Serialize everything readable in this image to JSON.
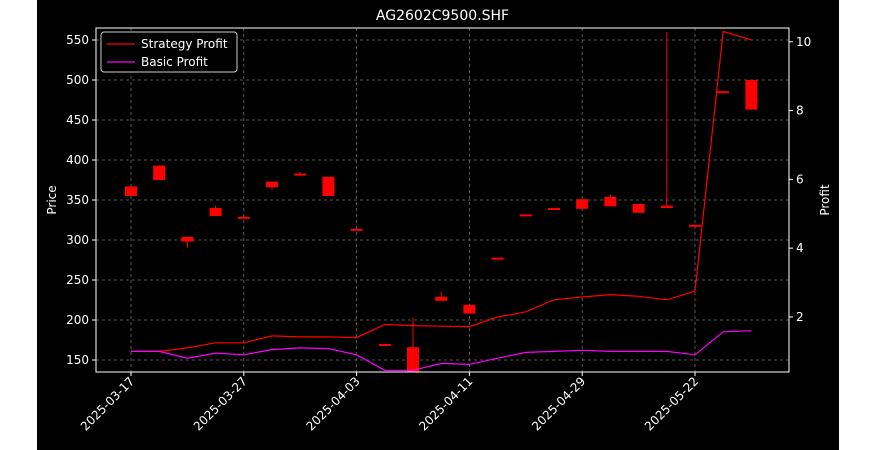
{
  "chart_data": {
    "type": "candlestick+line",
    "title": "AG2602C9500.SHF",
    "ylabel_left": "Price",
    "ylabel_right": "Profit",
    "ylim_left": [
      135,
      565
    ],
    "ylim_right": [
      0.4,
      10.4
    ],
    "yticks_left": [
      "150",
      "200",
      "250",
      "300",
      "350",
      "400",
      "450",
      "500",
      "550"
    ],
    "yticks_right": [
      "2",
      "4",
      "6",
      "8",
      "10"
    ],
    "x_tick_labels": [
      "2025-03-17",
      "2025-03-27",
      "2025-04-03",
      "2025-04-11",
      "2025-04-29",
      "2025-05-22"
    ],
    "x_tick_indices": [
      0,
      4,
      8,
      12,
      16,
      20
    ],
    "grid": true,
    "legend_position": "top-left",
    "candles": [
      {
        "i": 0,
        "open": 355,
        "close": 367,
        "high": 367,
        "low": 355
      },
      {
        "i": 1,
        "open": 375,
        "close": 393,
        "high": 393,
        "low": 375
      },
      {
        "i": 2,
        "open": 298,
        "close": 304,
        "high": 304,
        "low": 290
      },
      {
        "i": 3,
        "open": 330,
        "close": 340,
        "high": 343,
        "low": 330
      },
      {
        "i": 4,
        "open": 327,
        "close": 329,
        "high": 330,
        "low": 327
      },
      {
        "i": 5,
        "open": 366,
        "close": 373,
        "high": 373,
        "low": 362
      },
      {
        "i": 6,
        "open": 382,
        "close": 383,
        "high": 385,
        "low": 382
      },
      {
        "i": 7,
        "open": 355,
        "close": 379,
        "high": 379,
        "low": 355
      },
      {
        "i": 8,
        "open": 312,
        "close": 314,
        "high": 314,
        "low": 312
      },
      {
        "i": 9,
        "open": 169,
        "close": 170,
        "high": 170,
        "low": 169
      },
      {
        "i": 10,
        "open": 135,
        "close": 166,
        "high": 203,
        "low": 135
      },
      {
        "i": 11,
        "open": 224,
        "close": 229,
        "high": 235,
        "low": 224
      },
      {
        "i": 12,
        "open": 208,
        "close": 219,
        "high": 219,
        "low": 208
      },
      {
        "i": 13,
        "open": 277,
        "close": 278,
        "high": 278,
        "low": 277
      },
      {
        "i": 14,
        "open": 331,
        "close": 332,
        "high": 332,
        "low": 331
      },
      {
        "i": 15,
        "open": 339,
        "close": 340,
        "high": 340,
        "low": 339
      },
      {
        "i": 16,
        "open": 339,
        "close": 351,
        "high": 351,
        "low": 339
      },
      {
        "i": 17,
        "open": 342,
        "close": 354,
        "high": 357,
        "low": 342
      },
      {
        "i": 18,
        "open": 334,
        "close": 345,
        "high": 345,
        "low": 334
      },
      {
        "i": 19,
        "open": 340,
        "close": 343,
        "high": 560,
        "low": 340
      },
      {
        "i": 20,
        "open": 318,
        "close": 319,
        "high": 319,
        "low": 318
      },
      {
        "i": 21,
        "open": 485,
        "close": 486,
        "high": 486,
        "low": 485
      },
      {
        "i": 22,
        "open": 463,
        "close": 500,
        "high": 500,
        "low": 463
      }
    ],
    "series": [
      {
        "name": "Strategy Profit",
        "color": "#ff0000",
        "values": [
          1.0,
          1.0,
          1.1,
          1.25,
          1.25,
          1.45,
          1.42,
          1.42,
          1.4,
          1.78,
          1.75,
          1.73,
          1.72,
          2.0,
          2.15,
          2.5,
          2.58,
          2.65,
          2.6,
          2.5,
          2.75,
          10.3,
          10.05
        ]
      },
      {
        "name": "Basic Profit",
        "color": "#ff00ff",
        "values": [
          1.0,
          1.0,
          0.8,
          0.95,
          0.9,
          1.05,
          1.1,
          1.08,
          0.9,
          0.45,
          0.45,
          0.65,
          0.62,
          0.8,
          0.97,
          1.0,
          1.03,
          1.0,
          1.0,
          1.0,
          0.9,
          1.57,
          1.6
        ]
      }
    ]
  }
}
